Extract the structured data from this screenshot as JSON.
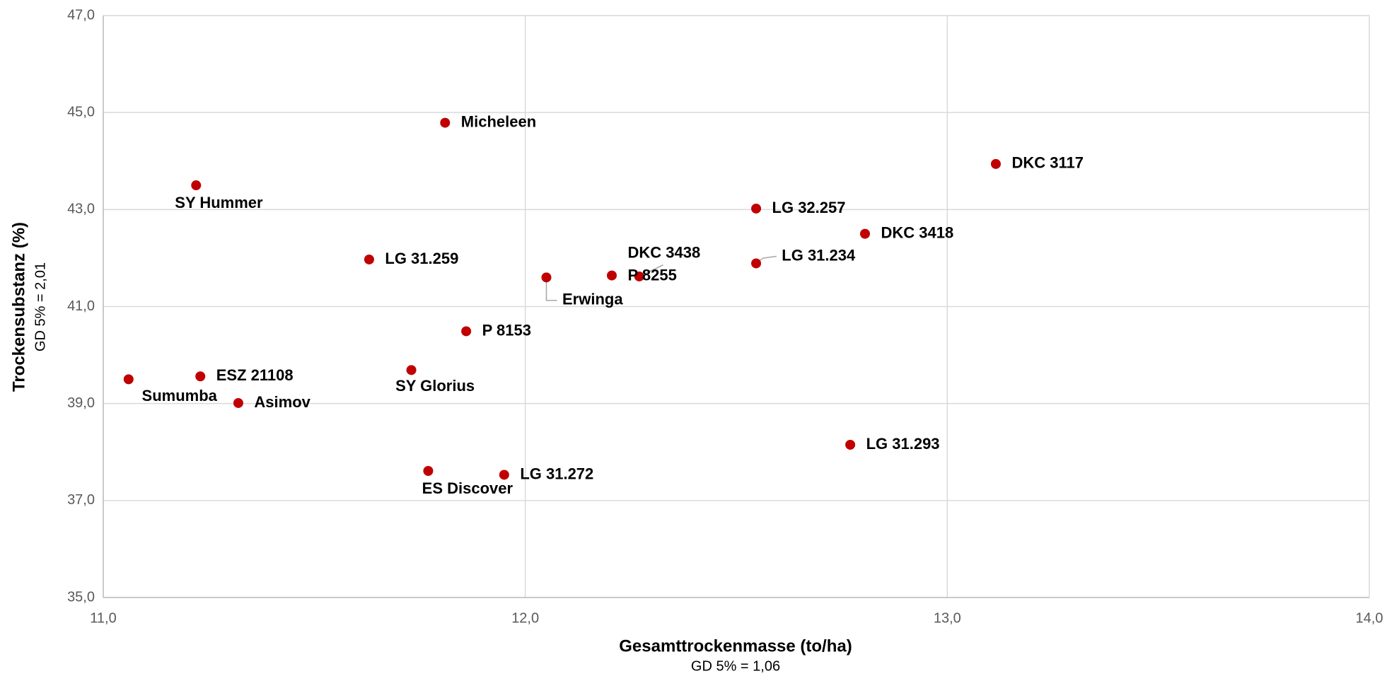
{
  "chart_data": {
    "type": "scatter",
    "xlabel": "Gesamttrockenmasse (to/ha)",
    "xlabel_note": "GD 5% = 1,06",
    "ylabel": "Trockensubstanz (%)",
    "ylabel_note": "GD 5% = 2,01",
    "color": "#c00000",
    "labels": [
      "Micheleen",
      "DKC 3117",
      "SY Hummer",
      "LG 32.257",
      "DKC 3418",
      "LG 31.259",
      "LG 31.234",
      "DKC 3438",
      "P 8255",
      "Erwinga",
      "P 8153",
      "SY Glorius",
      "ESZ 21108",
      "Sumumba",
      "Asimov",
      "LG 31.293",
      "ES Discover",
      "LG 31.272"
    ],
    "x": [
      11.81,
      13.115,
      11.22,
      12.547,
      12.805,
      11.63,
      12.547,
      12.27,
      12.205,
      12.05,
      11.86,
      11.73,
      11.23,
      11.06,
      11.32,
      12.77,
      11.77,
      11.95
    ],
    "values": [
      44.79,
      43.94,
      43.5,
      43.02,
      42.5,
      41.97,
      41.89,
      41.62,
      41.64,
      41.6,
      40.49,
      39.69,
      39.56,
      39.5,
      39.01,
      38.15,
      37.61,
      37.53
    ],
    "xlim": [
      11,
      14
    ],
    "xticks": [
      {
        "value": 11,
        "label": "11,0"
      },
      {
        "value": 12,
        "label": "12,0"
      },
      {
        "value": 13,
        "label": "13,0"
      },
      {
        "value": 14,
        "label": "14,0"
      }
    ],
    "ylim": [
      35,
      47
    ],
    "yticks": [
      {
        "value": 35,
        "label": "35,0"
      },
      {
        "value": 37,
        "label": "37,0"
      },
      {
        "value": 39,
        "label": "39,0"
      },
      {
        "value": 41,
        "label": "41,0"
      },
      {
        "value": 43,
        "label": "43,0"
      },
      {
        "value": 45,
        "label": "45,0"
      },
      {
        "value": 47,
        "label": "47,0"
      }
    ],
    "grid": true
  }
}
